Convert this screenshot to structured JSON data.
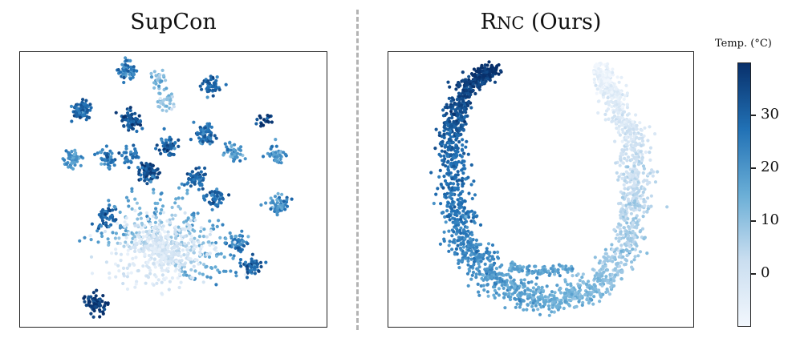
{
  "chart_data": [
    {
      "type": "scatter",
      "title": "SupCon",
      "xlabel": "",
      "ylabel": "",
      "grid": false,
      "colormap": [
        "#f2f7fd",
        "#cadef0",
        "#6aaed6",
        "#2171b5",
        "#08306b"
      ]
    },
    {
      "type": "scatter",
      "title_main": "R",
      "title_smallcaps": "NC",
      "title_rest": " (Ours)",
      "xlabel": "",
      "ylabel": "",
      "grid": false,
      "colormap": [
        "#f2f7fd",
        "#cadef0",
        "#6aaed6",
        "#2171b5",
        "#08306b"
      ]
    }
  ],
  "colorbar": {
    "title": "Temp. (°C)",
    "range": [
      -10,
      40
    ],
    "ticks": [
      "0",
      "10",
      "20",
      "30"
    ],
    "tick_values": [
      0,
      10,
      20,
      30
    ]
  }
}
